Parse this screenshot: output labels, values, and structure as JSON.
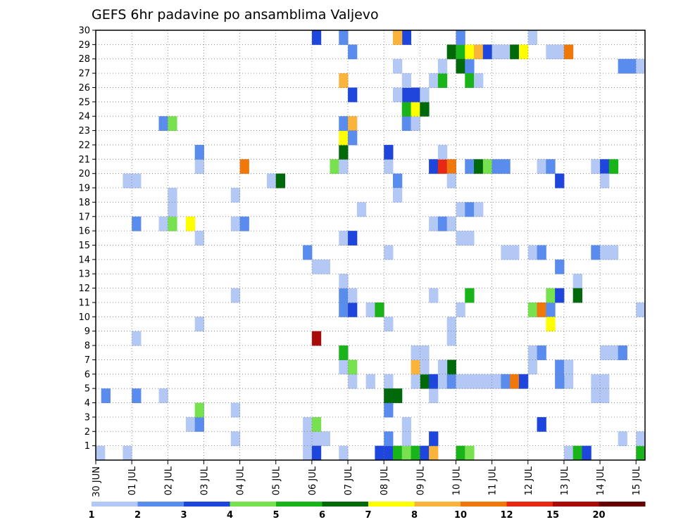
{
  "chart_data": {
    "type": "heatmap",
    "title": "GEFS 6hr padavine po ansamblima Valjevo",
    "xlabel": "",
    "ylabel": "",
    "x_tick_labels": [
      "30 JUN",
      "01 JUL",
      "02 JUL",
      "03 JUL",
      "04 JUL",
      "05 JUL",
      "06 JUL",
      "07 JUL",
      "08 JUL",
      "09 JUL",
      "10 JUL",
      "11 JUL",
      "12 JUL",
      "13 JUL",
      "14 JUL",
      "15 JUL"
    ],
    "y_tick_labels": [
      "1",
      "2",
      "3",
      "4",
      "5",
      "6",
      "7",
      "8",
      "9",
      "10",
      "11",
      "12",
      "13",
      "14",
      "15",
      "16",
      "17",
      "18",
      "19",
      "20",
      "21",
      "22",
      "23",
      "24",
      "25",
      "26",
      "27",
      "28",
      "29",
      "30"
    ],
    "x_range": [
      0,
      61
    ],
    "y_range": [
      0,
      30
    ],
    "grid": true,
    "time_step_hours": 6,
    "colorbar": {
      "labels": [
        "1",
        "2",
        "3",
        "4",
        "5",
        "6",
        "7",
        "8",
        "10",
        "12",
        "15",
        "20"
      ],
      "colors": [
        "#b4c8f5",
        "#5a8ced",
        "#1e46dc",
        "#78e150",
        "#19b419",
        "#00690a",
        "#ffff00",
        "#fab43c",
        "#f0780a",
        "#e62814",
        "#aa0a0a",
        "#640000"
      ]
    },
    "cells": [
      [
        0,
        0,
        1
      ],
      [
        0.6,
        4,
        2
      ],
      [
        3,
        0,
        1
      ],
      [
        4,
        4,
        2
      ],
      [
        4,
        8,
        1
      ],
      [
        3,
        19,
        1
      ],
      [
        4,
        19,
        1
      ],
      [
        4,
        16,
        2
      ],
      [
        7,
        4,
        1
      ],
      [
        7,
        23,
        2
      ],
      [
        8,
        23,
        4
      ],
      [
        7,
        16,
        1
      ],
      [
        8,
        16,
        4
      ],
      [
        8,
        17,
        1
      ],
      [
        8,
        18,
        1
      ],
      [
        10,
        2,
        1
      ],
      [
        11,
        2,
        2
      ],
      [
        11,
        3,
        4
      ],
      [
        11,
        9,
        1
      ],
      [
        11,
        15,
        1
      ],
      [
        10,
        16,
        7
      ],
      [
        11,
        20,
        1
      ],
      [
        11,
        21,
        2
      ],
      [
        15,
        1,
        1
      ],
      [
        15,
        3,
        1
      ],
      [
        15,
        11,
        1
      ],
      [
        15,
        16,
        1
      ],
      [
        16,
        16,
        2
      ],
      [
        15,
        18,
        1
      ],
      [
        16,
        20,
        9
      ],
      [
        19,
        19,
        1
      ],
      [
        20,
        19,
        6
      ],
      [
        23,
        1,
        1
      ],
      [
        24,
        1,
        1
      ],
      [
        25,
        1,
        1
      ],
      [
        23,
        0,
        1
      ],
      [
        23,
        2,
        1
      ],
      [
        24,
        2,
        4
      ],
      [
        24,
        0,
        3
      ],
      [
        23,
        14,
        2
      ],
      [
        24,
        13,
        1
      ],
      [
        25,
        13,
        1
      ],
      [
        24,
        8,
        11
      ],
      [
        24,
        29,
        3
      ],
      [
        26,
        20,
        4
      ],
      [
        27,
        0,
        1
      ],
      [
        27,
        6,
        1
      ],
      [
        27,
        7,
        5
      ],
      [
        27,
        10,
        2
      ],
      [
        27,
        11,
        2
      ],
      [
        27,
        12,
        1
      ],
      [
        27,
        15,
        1
      ],
      [
        27,
        20,
        1
      ],
      [
        27,
        21,
        6
      ],
      [
        27,
        22,
        7
      ],
      [
        27,
        23,
        2
      ],
      [
        28,
        23,
        8
      ],
      [
        27,
        26,
        8
      ],
      [
        27,
        29,
        2
      ],
      [
        28,
        5,
        1
      ],
      [
        28,
        6,
        4
      ],
      [
        28,
        10,
        3
      ],
      [
        28,
        11,
        1
      ],
      [
        28,
        15,
        3
      ],
      [
        28,
        22,
        2
      ],
      [
        28,
        25,
        3
      ],
      [
        28,
        28,
        2
      ],
      [
        29,
        17,
        1
      ],
      [
        30,
        5,
        1
      ],
      [
        30,
        10,
        1
      ],
      [
        31,
        10,
        5
      ],
      [
        32,
        4,
        1
      ],
      [
        32,
        5,
        1
      ],
      [
        32,
        9,
        1
      ],
      [
        32,
        14,
        1
      ],
      [
        32,
        20,
        1
      ],
      [
        33,
        27,
        1
      ],
      [
        31,
        0,
        3
      ],
      [
        32,
        0,
        3
      ],
      [
        33,
        0,
        5
      ],
      [
        32,
        1,
        2
      ],
      [
        32,
        3,
        2
      ],
      [
        32,
        4,
        6
      ],
      [
        33,
        4,
        6
      ],
      [
        32,
        21,
        3
      ],
      [
        33,
        19,
        2
      ],
      [
        34,
        0,
        4
      ],
      [
        35,
        0,
        5
      ],
      [
        36,
        0,
        3
      ],
      [
        36,
        5,
        6
      ],
      [
        35,
        5,
        1
      ],
      [
        34,
        1,
        1
      ],
      [
        34,
        2,
        1
      ],
      [
        35,
        6,
        8
      ],
      [
        36,
        6,
        1
      ],
      [
        35,
        7,
        1
      ],
      [
        36,
        7,
        1
      ],
      [
        34,
        23,
        2
      ],
      [
        35,
        23,
        1
      ],
      [
        34,
        24,
        5
      ],
      [
        35,
        24,
        7
      ],
      [
        36,
        24,
        6
      ],
      [
        34,
        25,
        3
      ],
      [
        35,
        25,
        3
      ],
      [
        36,
        25,
        1
      ],
      [
        34,
        26,
        1
      ],
      [
        33,
        25,
        1
      ],
      [
        34,
        29,
        3
      ],
      [
        33,
        29,
        8
      ],
      [
        33,
        18,
        1
      ],
      [
        37,
        0,
        8
      ],
      [
        37,
        1,
        3
      ],
      [
        37,
        4,
        1
      ],
      [
        37,
        5,
        3
      ],
      [
        37,
        11,
        1
      ],
      [
        37,
        20,
        3
      ],
      [
        38,
        20,
        10
      ],
      [
        39,
        20,
        9
      ],
      [
        37,
        26,
        1
      ],
      [
        38,
        26,
        5
      ],
      [
        38,
        27,
        1
      ],
      [
        38,
        5,
        1
      ],
      [
        39,
        5,
        2
      ],
      [
        39,
        6,
        6
      ],
      [
        38,
        6,
        1
      ],
      [
        37,
        16,
        1
      ],
      [
        38,
        16,
        2
      ],
      [
        39,
        16,
        1
      ],
      [
        38,
        21,
        1
      ],
      [
        39,
        19,
        1
      ],
      [
        39,
        8,
        1
      ],
      [
        39,
        9,
        1
      ],
      [
        39,
        28,
        6
      ],
      [
        40,
        28,
        5
      ],
      [
        40,
        27,
        6
      ],
      [
        41,
        27,
        2
      ],
      [
        40,
        29,
        2
      ],
      [
        40,
        0,
        5
      ],
      [
        41,
        0,
        4
      ],
      [
        40,
        5,
        1
      ],
      [
        41,
        5,
        1
      ],
      [
        42,
        5,
        1
      ],
      [
        41,
        20,
        2
      ],
      [
        42,
        20,
        6
      ],
      [
        43,
        20,
        4
      ],
      [
        44,
        20,
        2
      ],
      [
        45,
        20,
        2
      ],
      [
        41,
        11,
        5
      ],
      [
        40,
        10,
        1
      ],
      [
        40,
        15,
        1
      ],
      [
        41,
        15,
        1
      ],
      [
        40,
        17,
        1
      ],
      [
        41,
        17,
        2
      ],
      [
        42,
        17,
        1
      ],
      [
        41,
        26,
        5
      ],
      [
        42,
        26,
        1
      ],
      [
        41,
        28,
        7
      ],
      [
        42,
        28,
        8
      ],
      [
        43,
        28,
        3
      ],
      [
        44,
        28,
        1
      ],
      [
        45,
        28,
        1
      ],
      [
        46,
        28,
        6
      ],
      [
        47,
        28,
        7
      ],
      [
        48,
        29,
        1
      ],
      [
        43,
        5,
        1
      ],
      [
        44,
        5,
        1
      ],
      [
        45,
        5,
        2
      ],
      [
        46,
        5,
        9
      ],
      [
        47,
        5,
        3
      ],
      [
        46,
        14,
        1
      ],
      [
        45,
        14,
        1
      ],
      [
        48,
        7,
        1
      ],
      [
        49,
        7,
        2
      ],
      [
        48,
        6,
        1
      ],
      [
        48,
        14,
        1
      ],
      [
        49,
        14,
        2
      ],
      [
        49,
        20,
        1
      ],
      [
        50,
        20,
        2
      ],
      [
        48,
        10,
        4
      ],
      [
        49,
        10,
        9
      ],
      [
        50,
        10,
        2
      ],
      [
        49,
        2,
        3
      ],
      [
        52,
        0,
        1
      ],
      [
        53,
        0,
        5
      ],
      [
        52,
        5,
        1
      ],
      [
        51,
        5,
        2
      ],
      [
        51,
        6,
        2
      ],
      [
        52,
        6,
        1
      ],
      [
        50,
        9,
        7
      ],
      [
        50,
        11,
        4
      ],
      [
        51,
        11,
        3
      ],
      [
        51,
        19,
        3
      ],
      [
        51,
        13,
        2
      ],
      [
        50,
        28,
        1
      ],
      [
        51,
        28,
        1
      ],
      [
        52,
        28,
        9
      ],
      [
        53,
        12,
        1
      ],
      [
        53,
        11,
        6
      ],
      [
        55,
        4,
        1
      ],
      [
        56,
        4,
        1
      ],
      [
        55,
        5,
        1
      ],
      [
        56,
        5,
        1
      ],
      [
        56,
        7,
        1
      ],
      [
        54,
        0,
        3
      ],
      [
        55,
        20,
        1
      ],
      [
        56,
        20,
        3
      ],
      [
        57,
        20,
        5
      ],
      [
        56,
        19,
        1
      ],
      [
        57,
        14,
        1
      ],
      [
        55,
        14,
        2
      ],
      [
        56,
        14,
        1
      ],
      [
        57,
        7,
        1
      ],
      [
        58,
        7,
        2
      ],
      [
        58,
        1,
        1
      ],
      [
        60,
        0,
        5
      ],
      [
        60,
        1,
        1
      ],
      [
        60,
        10,
        1
      ],
      [
        58,
        27,
        2
      ],
      [
        59,
        27,
        2
      ],
      [
        60,
        27,
        1
      ]
    ]
  }
}
